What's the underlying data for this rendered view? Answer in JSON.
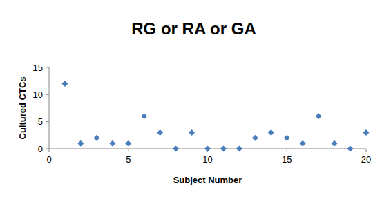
{
  "chart_data": {
    "type": "scatter",
    "title": "RG or RA or GA",
    "x_label": "Subject Number",
    "y_label": "Cultured CTCs",
    "x": [
      1,
      2,
      3,
      4,
      5,
      6,
      7,
      8,
      9,
      10,
      11,
      12,
      13,
      14,
      15,
      16,
      17,
      18,
      19,
      20
    ],
    "values": [
      12,
      1,
      2,
      1,
      1,
      6,
      3,
      0,
      3,
      0,
      0,
      0,
      2,
      3,
      2,
      1,
      6,
      1,
      0,
      3
    ],
    "color": "#4a7ebb",
    "marker": "diamond",
    "xlim": [
      0,
      20
    ],
    "xticks": [
      0,
      5,
      10,
      15,
      20
    ],
    "ylim": [
      0,
      15
    ],
    "yticks": [
      0,
      5,
      10,
      15
    ],
    "grid": false
  }
}
